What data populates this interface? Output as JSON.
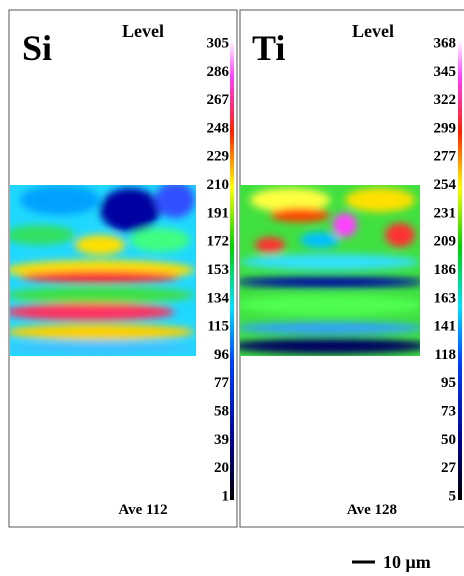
{
  "panels": [
    {
      "element": "Si",
      "level_label": "Level",
      "levels": [
        305,
        286,
        267,
        248,
        229,
        210,
        191,
        172,
        153,
        134,
        115,
        96,
        77,
        58,
        39,
        20,
        1
      ],
      "average": "Ave 112"
    },
    {
      "element": "Ti",
      "level_label": "Level",
      "levels": [
        368,
        345,
        322,
        299,
        277,
        254,
        231,
        209,
        186,
        163,
        141,
        118,
        95,
        73,
        50,
        27,
        5
      ],
      "average": "Ave 128"
    }
  ],
  "scale_bar": "10 μm"
}
